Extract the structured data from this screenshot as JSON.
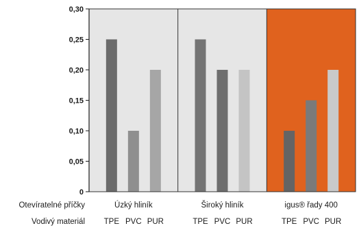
{
  "chart_data": {
    "type": "bar",
    "ylim": [
      0,
      0.3
    ],
    "y_ticks": [
      "0",
      "0,05",
      "0,10",
      "0,15",
      "0,20",
      "0,25",
      "0,30"
    ],
    "grid": false,
    "row_labels": {
      "profile": "Otevíratelné příčky",
      "material": "Vodivý materiál"
    },
    "groups": [
      {
        "name": "Úzký hliník",
        "background": "#e6e6e6",
        "bars": [
          {
            "label": "TPE",
            "value": 0.25,
            "color": "#6b6b6b"
          },
          {
            "label": "PVC",
            "value": 0.1,
            "color": "#8f8f8f"
          },
          {
            "label": "PUR",
            "value": 0.2,
            "color": "#a6a6a6"
          }
        ]
      },
      {
        "name": "Široký hliník",
        "background": "#e6e6e6",
        "bars": [
          {
            "label": "TPE",
            "value": 0.25,
            "color": "#747474"
          },
          {
            "label": "PVC",
            "value": 0.2,
            "color": "#6e6e6e"
          },
          {
            "label": "PUR",
            "value": 0.2,
            "color": "#c4c4c4"
          }
        ]
      },
      {
        "name": "igus® řady 400",
        "background": "#e0621e",
        "bars": [
          {
            "label": "TPE",
            "value": 0.1,
            "color": "#646464"
          },
          {
            "label": "PVC",
            "value": 0.15,
            "color": "#7a7a7a"
          },
          {
            "label": "PUR",
            "value": 0.2,
            "color": "#c9c9c9"
          }
        ]
      }
    ]
  }
}
